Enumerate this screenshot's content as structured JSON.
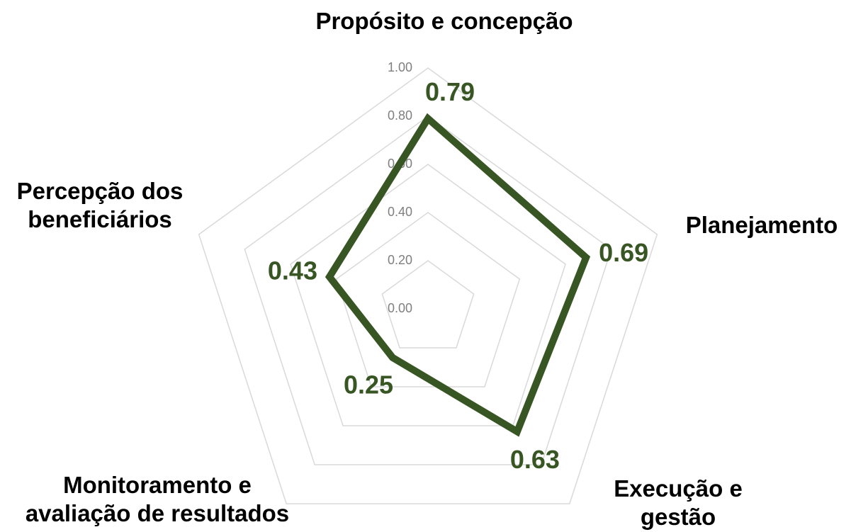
{
  "chart_data": {
    "type": "radar",
    "categories": [
      "Propósito e concepção",
      "Planejamento",
      "Execução e gestão",
      "Monitoramento e avaliação de resultados",
      "Percepção dos beneficiários"
    ],
    "series": [
      {
        "color": "#375623",
        "values": [
          0.79,
          0.69,
          0.63,
          0.25,
          0.43
        ]
      }
    ],
    "ylim": [
      0,
      1
    ],
    "yticks": [
      {
        "value": 0,
        "label": "0.00"
      },
      {
        "value": 0.2,
        "label": "0.20"
      },
      {
        "value": 0.4,
        "label": "0.40"
      },
      {
        "value": 0.6,
        "label": "0.60"
      },
      {
        "value": 0.8,
        "label": "0.80"
      },
      {
        "value": 1,
        "label": "1.00"
      }
    ],
    "grid": true
  }
}
